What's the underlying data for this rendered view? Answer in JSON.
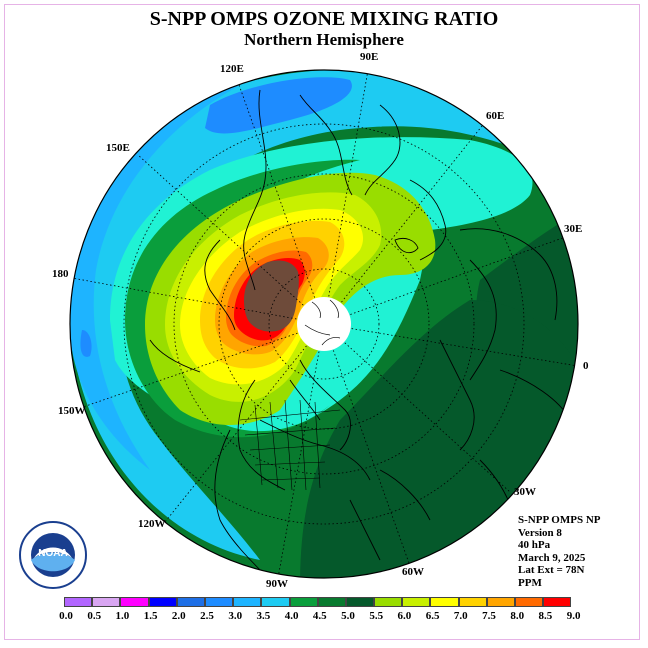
{
  "title": "S-NPP OMPS OZONE MIXING RATIO",
  "subtitle": "Northern Hemisphere",
  "longitude_labels": [
    {
      "text": "90E",
      "name": "lon-90e"
    },
    {
      "text": "120E",
      "name": "lon-120e"
    },
    {
      "text": "60E",
      "name": "lon-60e"
    },
    {
      "text": "150E",
      "name": "lon-150e"
    },
    {
      "text": "30E",
      "name": "lon-30e"
    },
    {
      "text": "180",
      "name": "lon-180"
    },
    {
      "text": "0",
      "name": "lon-0"
    },
    {
      "text": "150W",
      "name": "lon-150w"
    },
    {
      "text": "30W",
      "name": "lon-30w"
    },
    {
      "text": "120W",
      "name": "lon-120w"
    },
    {
      "text": "60W",
      "name": "lon-60w"
    },
    {
      "text": "90W",
      "name": "lon-90w"
    }
  ],
  "info": {
    "line1": "S-NPP OMPS NP",
    "line2": "Version 8",
    "line3": "40 hPa",
    "line4": "March 9, 2025",
    "line5": "Lat Ext = 78N",
    "line6": "PPM"
  },
  "colorbar": {
    "ticks": [
      "0.0",
      "0.5",
      "1.0",
      "1.5",
      "2.0",
      "2.5",
      "3.0",
      "3.5",
      "4.0",
      "4.5",
      "5.0",
      "5.5",
      "6.0",
      "6.5",
      "7.0",
      "7.5",
      "8.0",
      "8.5",
      "9.0"
    ],
    "colors": [
      "#b266ff",
      "#d9a6f2",
      "#ff00ff",
      "#0000ff",
      "#1e6fe6",
      "#1e8cff",
      "#1eb4ff",
      "#1ecbf2",
      "#20f2d4",
      "#0a9e3c",
      "#087a2e",
      "#05592b",
      "#99dd00",
      "#c8f000",
      "#ffff00",
      "#ffd200",
      "#ffa500",
      "#ff6a00",
      "#ff0000",
      "#6e4b3a"
    ]
  },
  "logo_text": "NOAA"
}
